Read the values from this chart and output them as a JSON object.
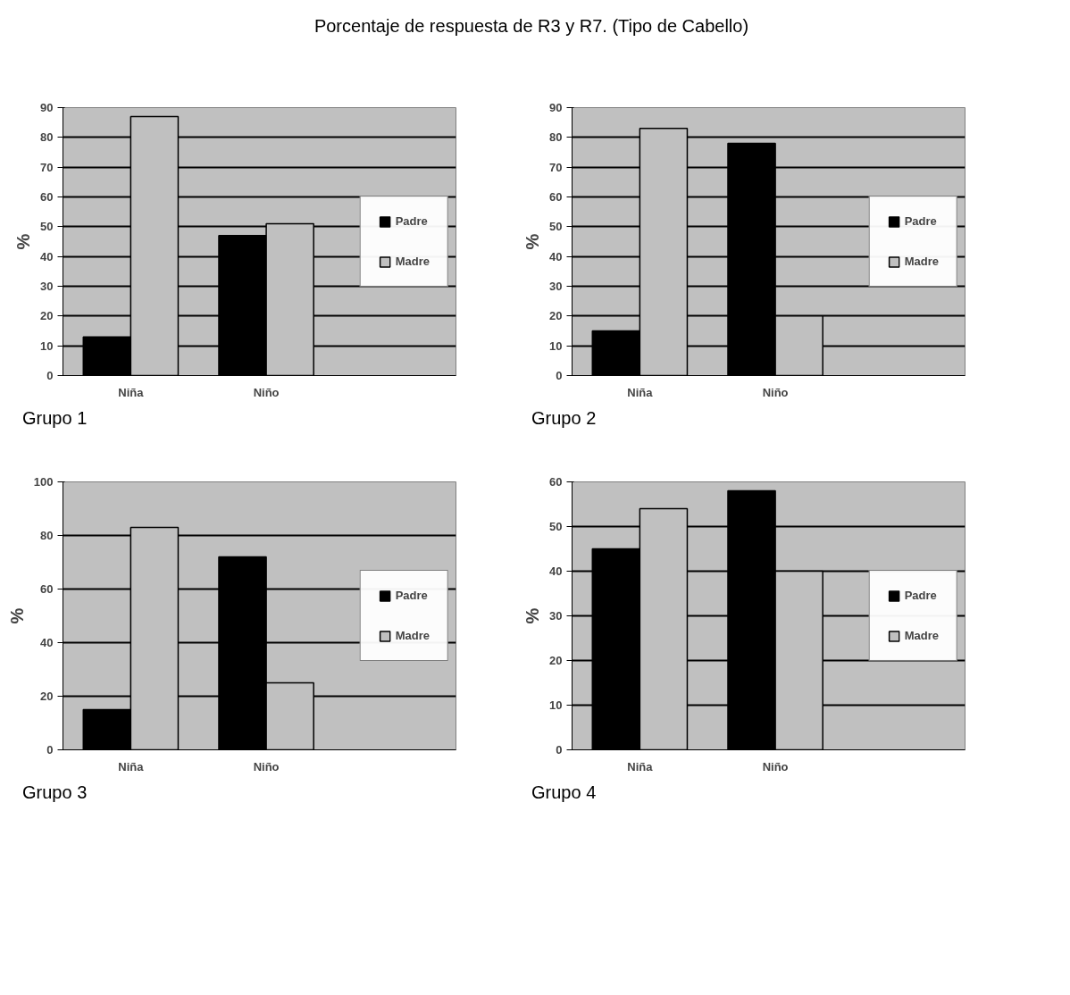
{
  "chart_data": [
    {
      "type": "bar",
      "title": "Porcentaje de respuesta de R3 y R7. (Tipo de Cabello)",
      "categories": [
        "Niña",
        "Niño"
      ],
      "ylabel": "%",
      "ylim": [
        0,
        90
      ],
      "yticks": [
        0,
        10,
        20,
        30,
        40,
        50,
        60,
        70,
        80,
        90
      ],
      "grid": "y",
      "legend": "right",
      "annotations": [
        "Grupo 1"
      ],
      "series": [
        {
          "name": "Padre",
          "color": "#000000",
          "values": [
            13,
            47
          ]
        },
        {
          "name": "Madre",
          "color": "#c0c0c0",
          "values": [
            87,
            51
          ]
        }
      ]
    },
    {
      "type": "bar",
      "categories": [
        "Niña",
        "Niño"
      ],
      "ylabel": "%",
      "ylim": [
        0,
        90
      ],
      "yticks": [
        0,
        10,
        20,
        30,
        40,
        50,
        60,
        70,
        80,
        90
      ],
      "grid": "y",
      "legend": "right",
      "annotations": [
        "Grupo 2"
      ],
      "series": [
        {
          "name": "Padre",
          "color": "#000000",
          "values": [
            15,
            78
          ]
        },
        {
          "name": "Madre",
          "color": "#c0c0c0",
          "values": [
            83,
            20
          ]
        }
      ]
    },
    {
      "type": "bar",
      "categories": [
        "Niña",
        "Niño"
      ],
      "ylabel": "%",
      "ylim": [
        0,
        100
      ],
      "yticks": [
        0,
        20,
        40,
        60,
        80,
        100
      ],
      "grid": "y",
      "legend": "right",
      "annotations": [
        "Grupo 3"
      ],
      "series": [
        {
          "name": "Padre",
          "color": "#000000",
          "values": [
            15,
            72
          ]
        },
        {
          "name": "Madre",
          "color": "#c0c0c0",
          "values": [
            83,
            25
          ]
        }
      ]
    },
    {
      "type": "bar",
      "categories": [
        "Niña",
        "Niño"
      ],
      "ylabel": "%",
      "ylim": [
        0,
        60
      ],
      "yticks": [
        0,
        10,
        20,
        30,
        40,
        50,
        60
      ],
      "grid": "y",
      "legend": "right",
      "annotations": [
        "Grupo 4"
      ],
      "series": [
        {
          "name": "Padre",
          "color": "#000000",
          "values": [
            45,
            58
          ]
        },
        {
          "name": "Madre",
          "color": "#c0c0c0",
          "values": [
            54,
            40
          ]
        }
      ]
    }
  ]
}
